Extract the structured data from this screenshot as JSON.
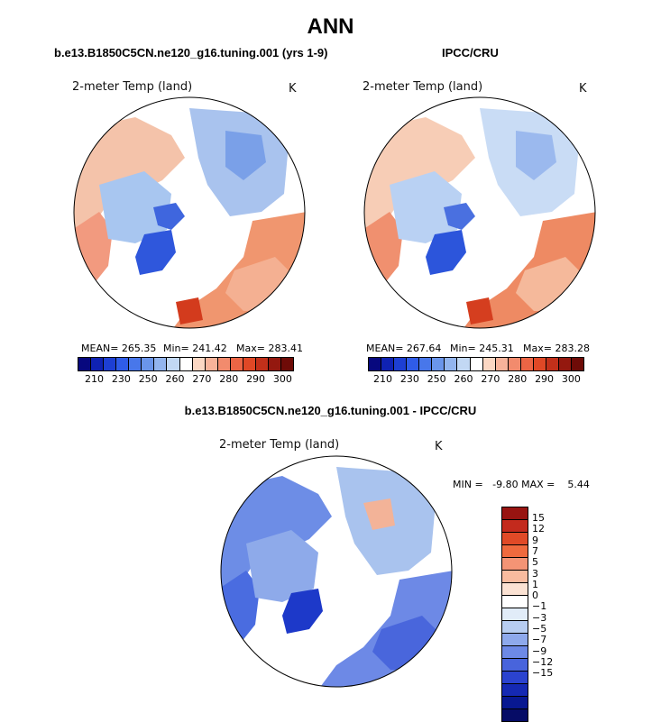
{
  "main_title": "ANN",
  "panels": [
    {
      "subtitle": "b.e13.B1850C5CN.ne120_g16.tuning.001 (yrs 1-9)",
      "variable": "2-meter Temp (land)",
      "units": "K",
      "mean_label": "MEAN= 265.35",
      "min_label": "Min= 241.42",
      "max_label": "Max= 283.41"
    },
    {
      "subtitle": "IPCC/CRU",
      "variable": "2-meter Temp (land)",
      "units": "K",
      "mean_label": "MEAN= 267.64",
      "min_label": "Min= 245.31",
      "max_label": "Max= 283.28"
    },
    {
      "subtitle": "b.e13.B1850C5CN.ne120_g16.tuning.001 - IPCC/CRU",
      "variable": "2-meter Temp (land)",
      "units": "K",
      "minmax_label": "MIN =   -9.80 MAX =    5.44"
    }
  ],
  "colorbar_abs": {
    "colors": [
      "#07087e",
      "#0f22b3",
      "#1d3fd3",
      "#2f5ce8",
      "#4877ea",
      "#6a95ea",
      "#93b5ee",
      "#c2d8f4",
      "#ffffff",
      "#fbd7c3",
      "#f7b39a",
      "#f28b6d",
      "#ec6545",
      "#e04826",
      "#c2301a",
      "#94180f",
      "#6e0b07"
    ],
    "tick_labels": [
      "210",
      "230",
      "250",
      "260",
      "270",
      "280",
      "290",
      "300"
    ]
  },
  "colorbar_diff": {
    "colors": [
      "#981411",
      "#c32a1d",
      "#e04a27",
      "#ef6a3e",
      "#f49475",
      "#f8bb9f",
      "#fbe2d3",
      "#ffffff",
      "#e1ecf8",
      "#b7cdf1",
      "#8ea9ec",
      "#6d89e6",
      "#4864dc",
      "#2b43cf",
      "#1529b3",
      "#081891",
      "#060c66"
    ],
    "tick_labels": [
      "15",
      "12",
      "9",
      "7",
      "5",
      "3",
      "1",
      "0",
      "−1",
      "−3",
      "−5",
      "−7",
      "−9",
      "−12",
      "−15"
    ]
  },
  "chart_data": [
    {
      "type": "heatmap",
      "title": "b.e13.B1850C5CN.ne120_g16.tuning.001 (yrs 1-9)",
      "variable": "2-meter Temp (land)",
      "units": "K",
      "mean": 265.35,
      "min": 241.42,
      "max": 283.41,
      "colorbar_ticks": [
        210,
        230,
        250,
        260,
        270,
        280,
        290,
        300
      ]
    },
    {
      "type": "heatmap",
      "title": "IPCC/CRU",
      "variable": "2-meter Temp (land)",
      "units": "K",
      "mean": 267.64,
      "min": 245.31,
      "max": 283.28,
      "colorbar_ticks": [
        210,
        230,
        250,
        260,
        270,
        280,
        290,
        300
      ]
    },
    {
      "type": "heatmap",
      "title": "b.e13.B1850C5CN.ne120_g16.tuning.001 - IPCC/CRU",
      "variable": "2-meter Temp (land)",
      "units": "K",
      "min": -9.8,
      "max": 5.44,
      "colorbar_ticks": [
        15,
        12,
        9,
        7,
        5,
        3,
        1,
        0,
        -1,
        -3,
        -5,
        -7,
        -9,
        -12,
        -15
      ]
    }
  ]
}
